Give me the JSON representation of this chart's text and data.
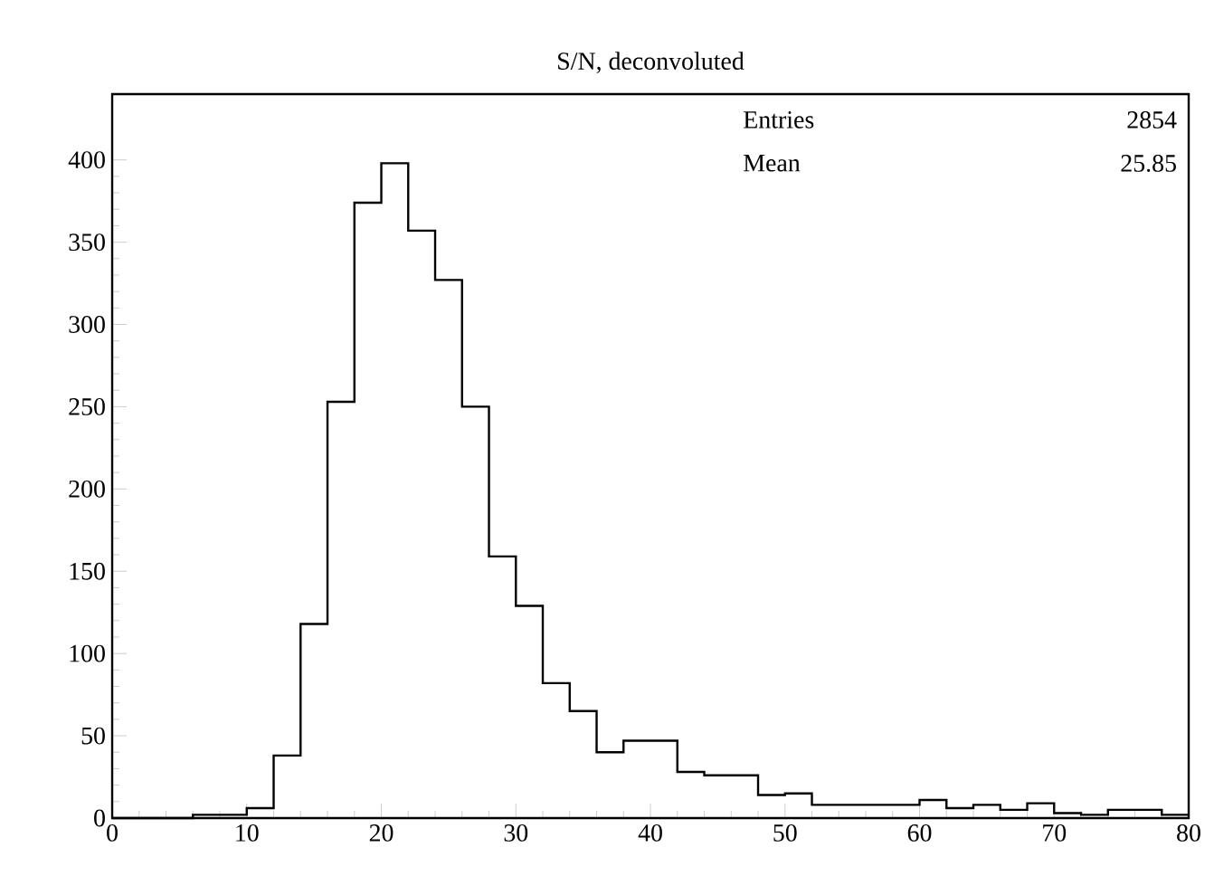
{
  "chart_data": {
    "type": "histogram",
    "title": "S/N, deconvoluted",
    "bins": [
      0,
      2,
      4,
      6,
      8,
      10,
      12,
      14,
      16,
      18,
      20,
      22,
      24,
      26,
      28,
      30,
      32,
      34,
      36,
      38,
      40,
      42,
      44,
      46,
      48,
      50,
      52,
      54,
      56,
      58,
      60,
      62,
      64,
      66,
      68,
      70,
      72,
      74,
      76,
      78,
      80
    ],
    "values": [
      0,
      0,
      0,
      2,
      2,
      6,
      38,
      118,
      253,
      374,
      398,
      357,
      327,
      250,
      159,
      129,
      82,
      65,
      40,
      47,
      47,
      28,
      26,
      26,
      14,
      15,
      8,
      8,
      8,
      8,
      11,
      6,
      8,
      5,
      9,
      3,
      2,
      5,
      5,
      2
    ],
    "color": "#000000",
    "xlim": [
      0,
      80
    ],
    "xticks": [
      0,
      10,
      20,
      30,
      40,
      50,
      60,
      70,
      80
    ],
    "ylim": [
      0,
      440
    ],
    "yticks": [
      0,
      50,
      100,
      150,
      200,
      250,
      300,
      350,
      400
    ],
    "grid": false,
    "annotations": [
      "Entries",
      "2854",
      "Mean",
      "25.85"
    ]
  }
}
